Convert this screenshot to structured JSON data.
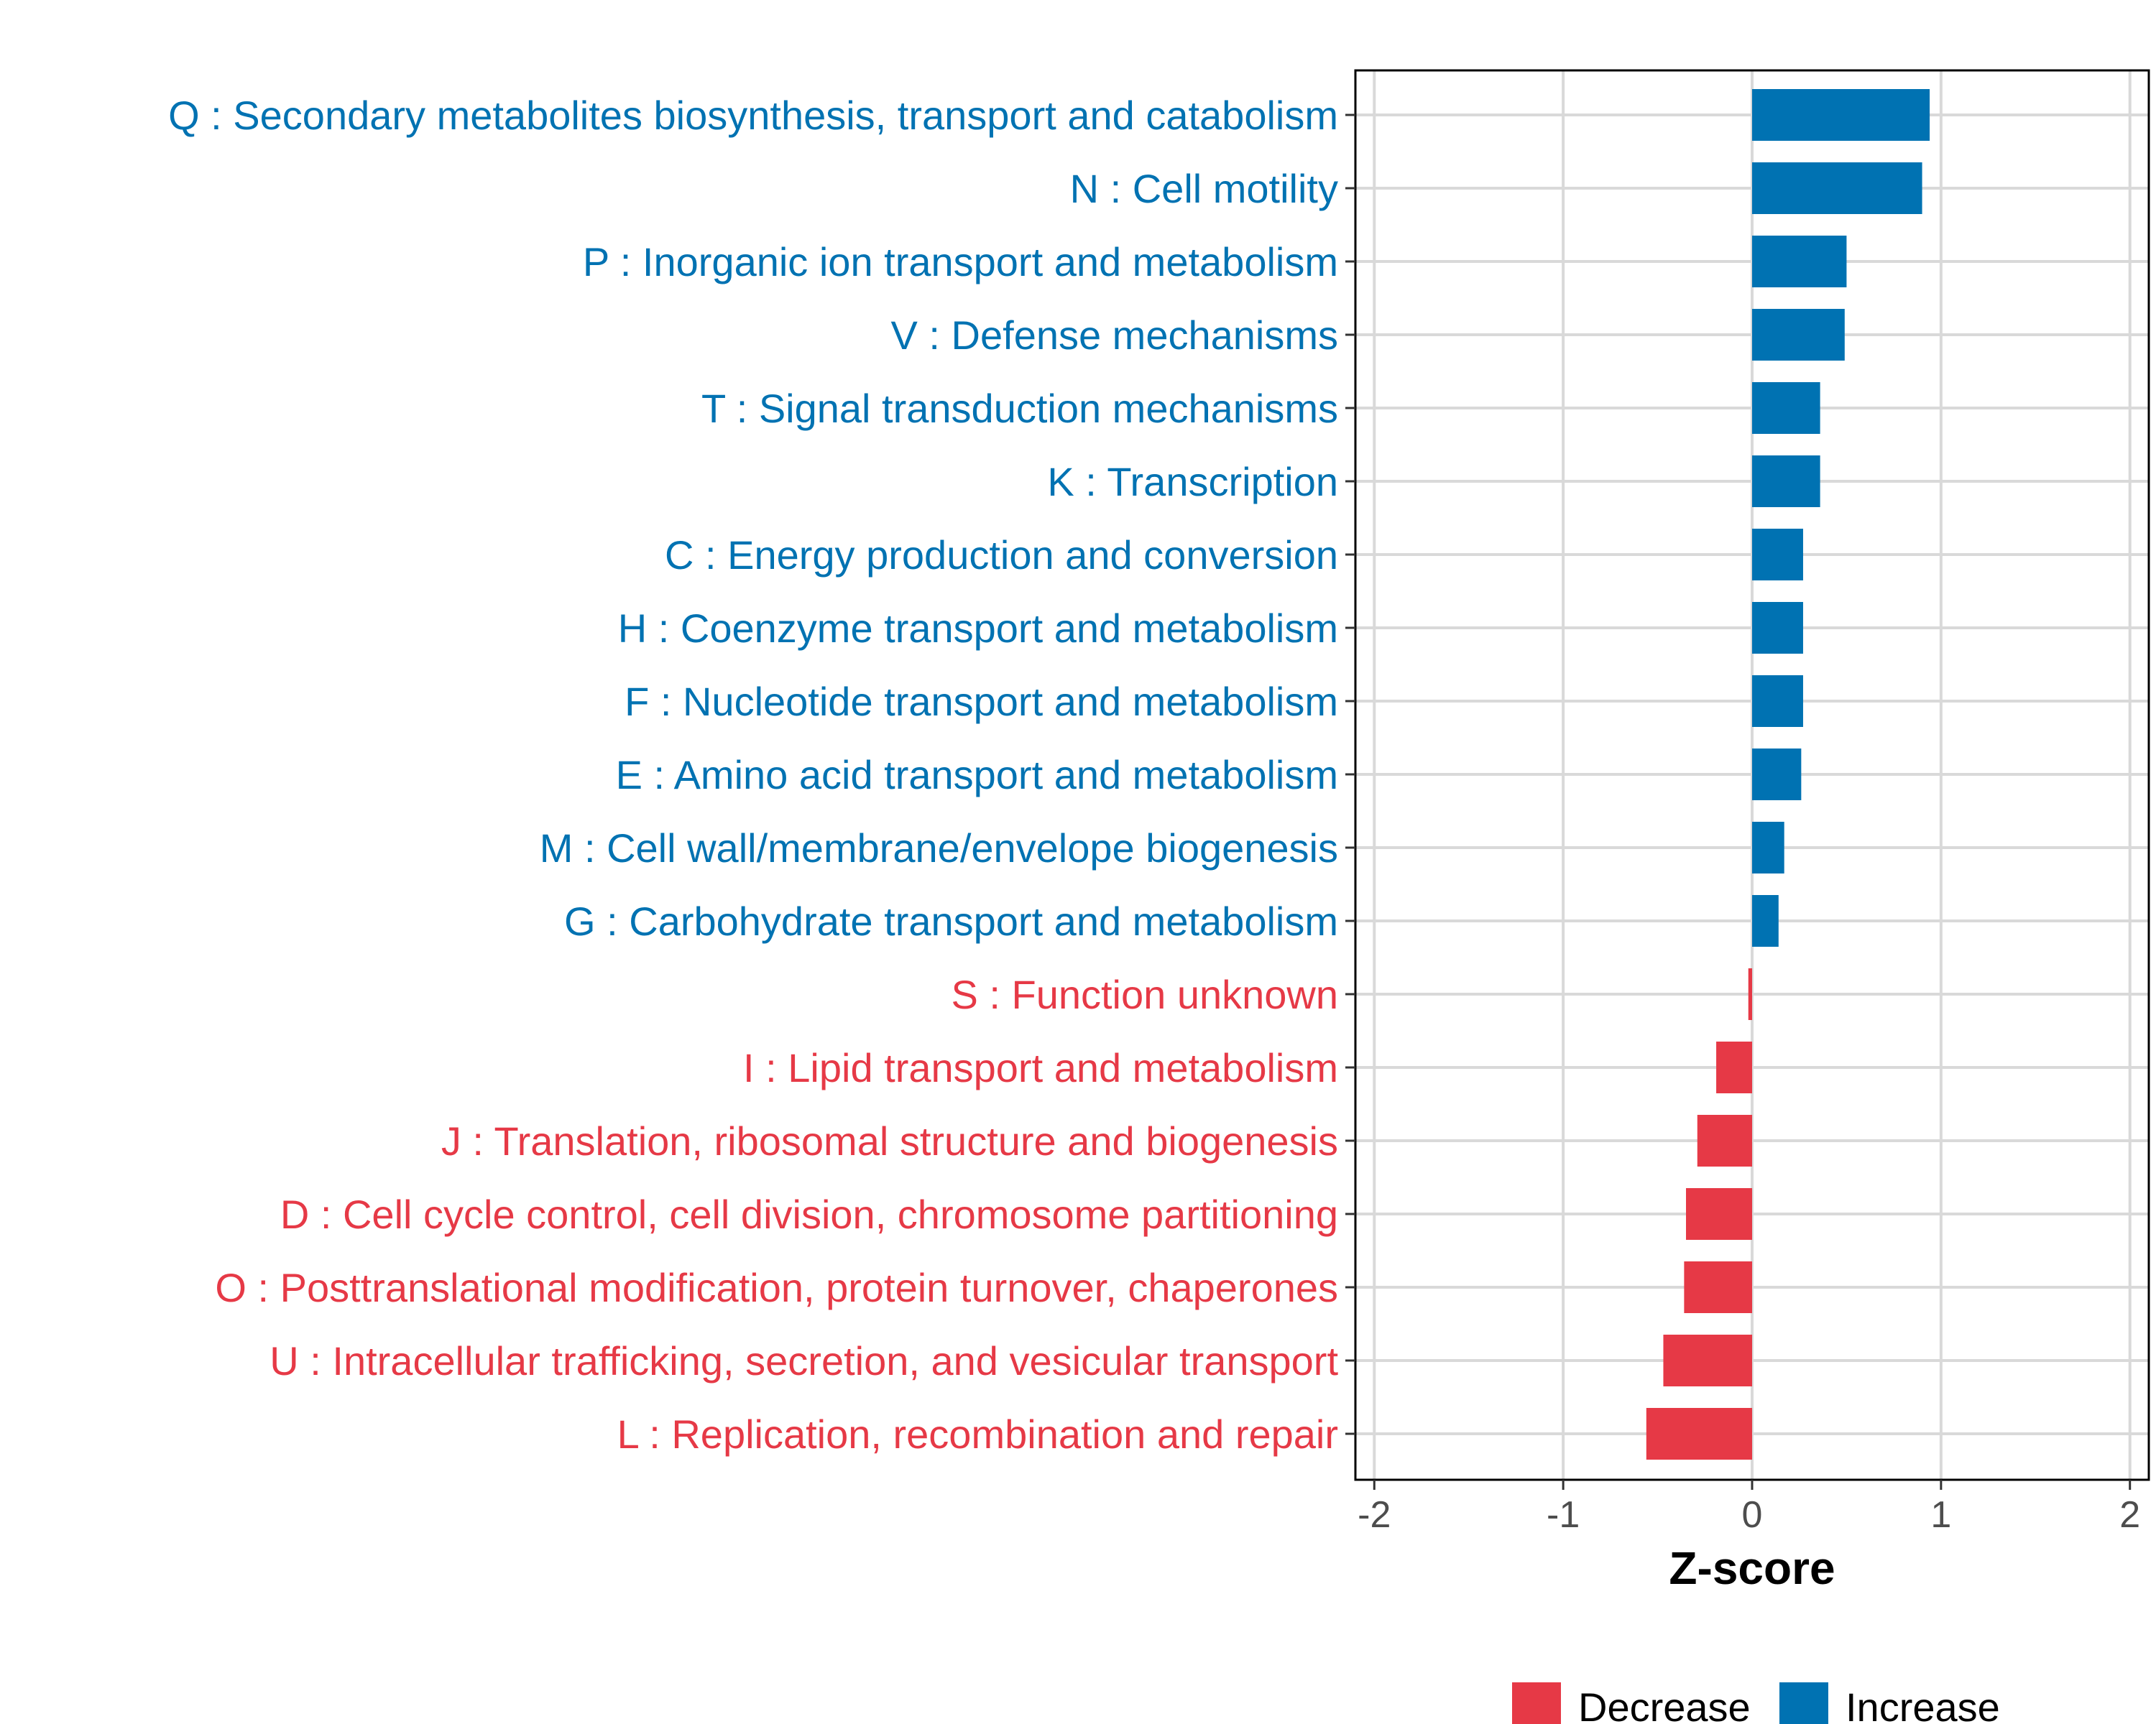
{
  "chart_data": {
    "type": "bar",
    "orientation": "horizontal",
    "xlabel": "Z-score",
    "xlim": [
      -2.1,
      2.1
    ],
    "xticks": [
      -2,
      -1,
      0,
      1,
      2
    ],
    "xtick_labels": [
      "-2",
      "-1",
      "0",
      "1",
      "2"
    ],
    "grid": true,
    "legend_position": "bottom",
    "colors": {
      "Increase": "#0072b2",
      "Decrease": "#e63946"
    },
    "legend": [
      {
        "name": "Decrease",
        "color": "#e63946"
      },
      {
        "name": "Increase",
        "color": "#0072b2"
      }
    ],
    "categories": [
      "Q : Secondary metabolites biosynthesis, transport and catabolism",
      "N : Cell motility",
      "P : Inorganic ion transport and metabolism",
      "V : Defense mechanisms",
      "T : Signal transduction mechanisms",
      "K : Transcription",
      "C : Energy production and conversion",
      "H : Coenzyme transport and metabolism",
      "F : Nucleotide transport and metabolism",
      "E : Amino acid transport and metabolism",
      "M : Cell wall/membrane/envelope biogenesis",
      "G : Carbohydrate transport and metabolism",
      "S : Function unknown",
      "I : Lipid transport and metabolism",
      "J : Translation, ribosomal structure and biogenesis",
      "D : Cell cycle control, cell division, chromosome partitioning",
      "O : Posttranslational modification, protein turnover, chaperones",
      "U : Intracellular trafficking, secretion, and vesicular transport",
      "L : Replication, recombination and repair"
    ],
    "values": [
      0.94,
      0.9,
      0.5,
      0.49,
      0.36,
      0.36,
      0.27,
      0.27,
      0.27,
      0.26,
      0.17,
      0.14,
      -0.02,
      -0.19,
      -0.29,
      -0.35,
      -0.36,
      -0.47,
      -0.56
    ],
    "groups": [
      "Increase",
      "Increase",
      "Increase",
      "Increase",
      "Increase",
      "Increase",
      "Increase",
      "Increase",
      "Increase",
      "Increase",
      "Increase",
      "Increase",
      "Decrease",
      "Decrease",
      "Decrease",
      "Decrease",
      "Decrease",
      "Decrease",
      "Decrease"
    ]
  }
}
